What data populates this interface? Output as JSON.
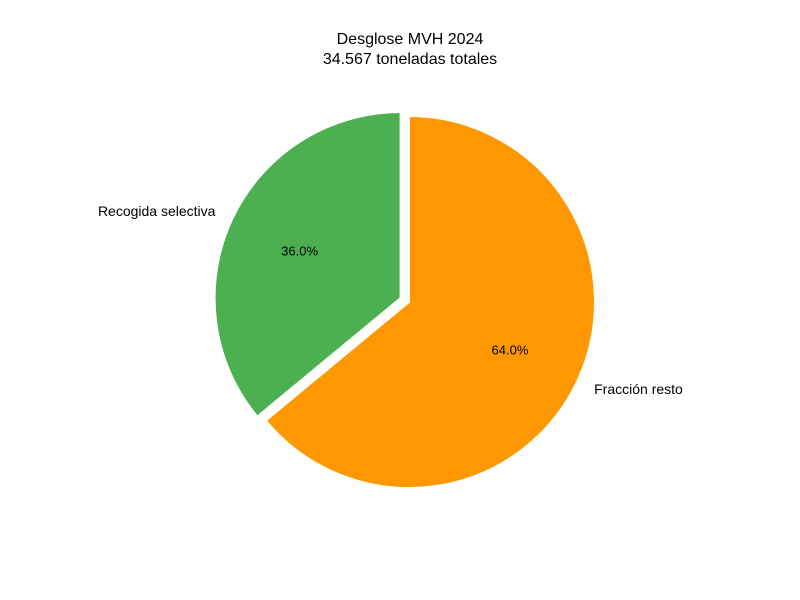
{
  "chart_data": {
    "type": "pie",
    "title": "Desglose MVH 2024",
    "subtitle": "34.567 toneladas totales",
    "categories": [
      "Fracción resto",
      "Recogida selectiva"
    ],
    "values": [
      64.0,
      36.0
    ],
    "value_labels": [
      "64.0%",
      "36.0%"
    ],
    "colors": [
      "#ff9800",
      "#4caf50"
    ],
    "exploded": [
      false,
      true
    ],
    "start_angle_deg": 90,
    "direction": "clockwise",
    "legend": "none"
  }
}
